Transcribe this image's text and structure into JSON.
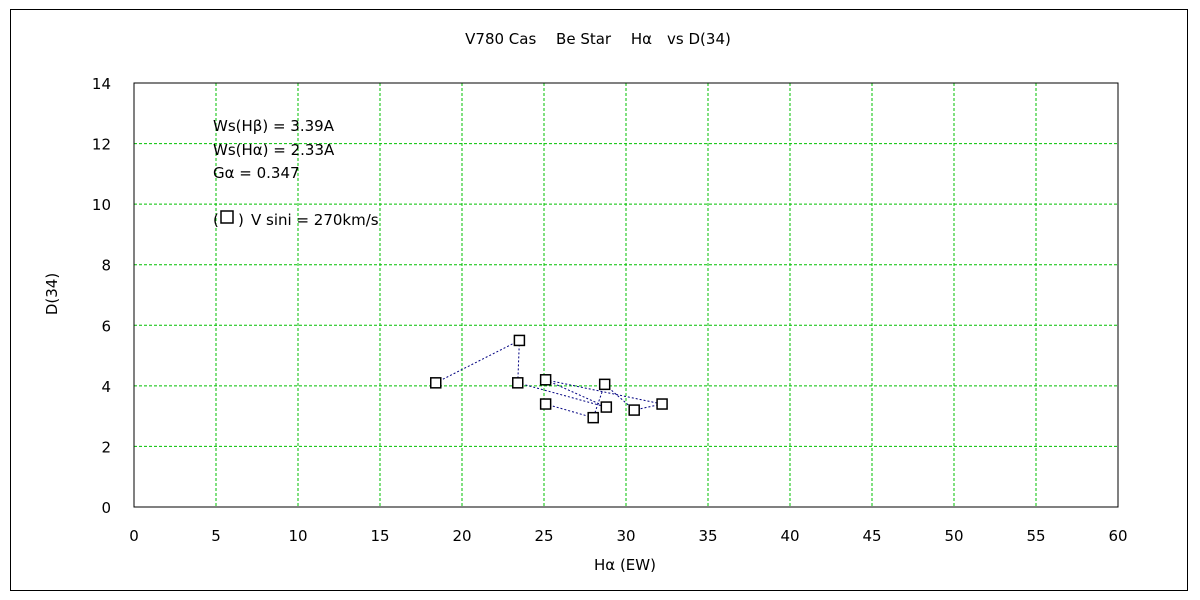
{
  "chart_data": {
    "type": "scatter",
    "title": "V780 Cas　 Be Star　 Hα　vs D(34)",
    "xlabel": "Hα (EW)",
    "ylabel": "D(34)",
    "xlim": [
      0,
      60
    ],
    "ylim": [
      0,
      14
    ],
    "x_ticks": [
      0,
      5,
      10,
      15,
      20,
      25,
      30,
      35,
      40,
      45,
      50,
      55,
      60
    ],
    "y_ticks": [
      0,
      2,
      4,
      6,
      8,
      10,
      12,
      14
    ],
    "grid": true,
    "colors": {
      "grid": "#00c000",
      "marker": "#000000",
      "line": "#000080"
    },
    "series": [
      {
        "marker": "square",
        "points": [
          {
            "x": 18.4,
            "y": 4.1
          },
          {
            "x": 23.5,
            "y": 5.5
          },
          {
            "x": 23.4,
            "y": 4.1
          },
          {
            "x": 28.8,
            "y": 3.3
          },
          {
            "x": 25.1,
            "y": 4.2
          },
          {
            "x": 32.2,
            "y": 3.4
          },
          {
            "x": 30.5,
            "y": 3.2
          },
          {
            "x": 28.7,
            "y": 4.05
          },
          {
            "x": 28.0,
            "y": 2.95
          },
          {
            "x": 25.1,
            "y": 3.4
          }
        ]
      }
    ],
    "annotations": [
      "Ws(Hβ) = 3.39A",
      "Ws(Hα) = 2.33A",
      "Gα = 0.347",
      "V sini = 270km/s"
    ]
  }
}
